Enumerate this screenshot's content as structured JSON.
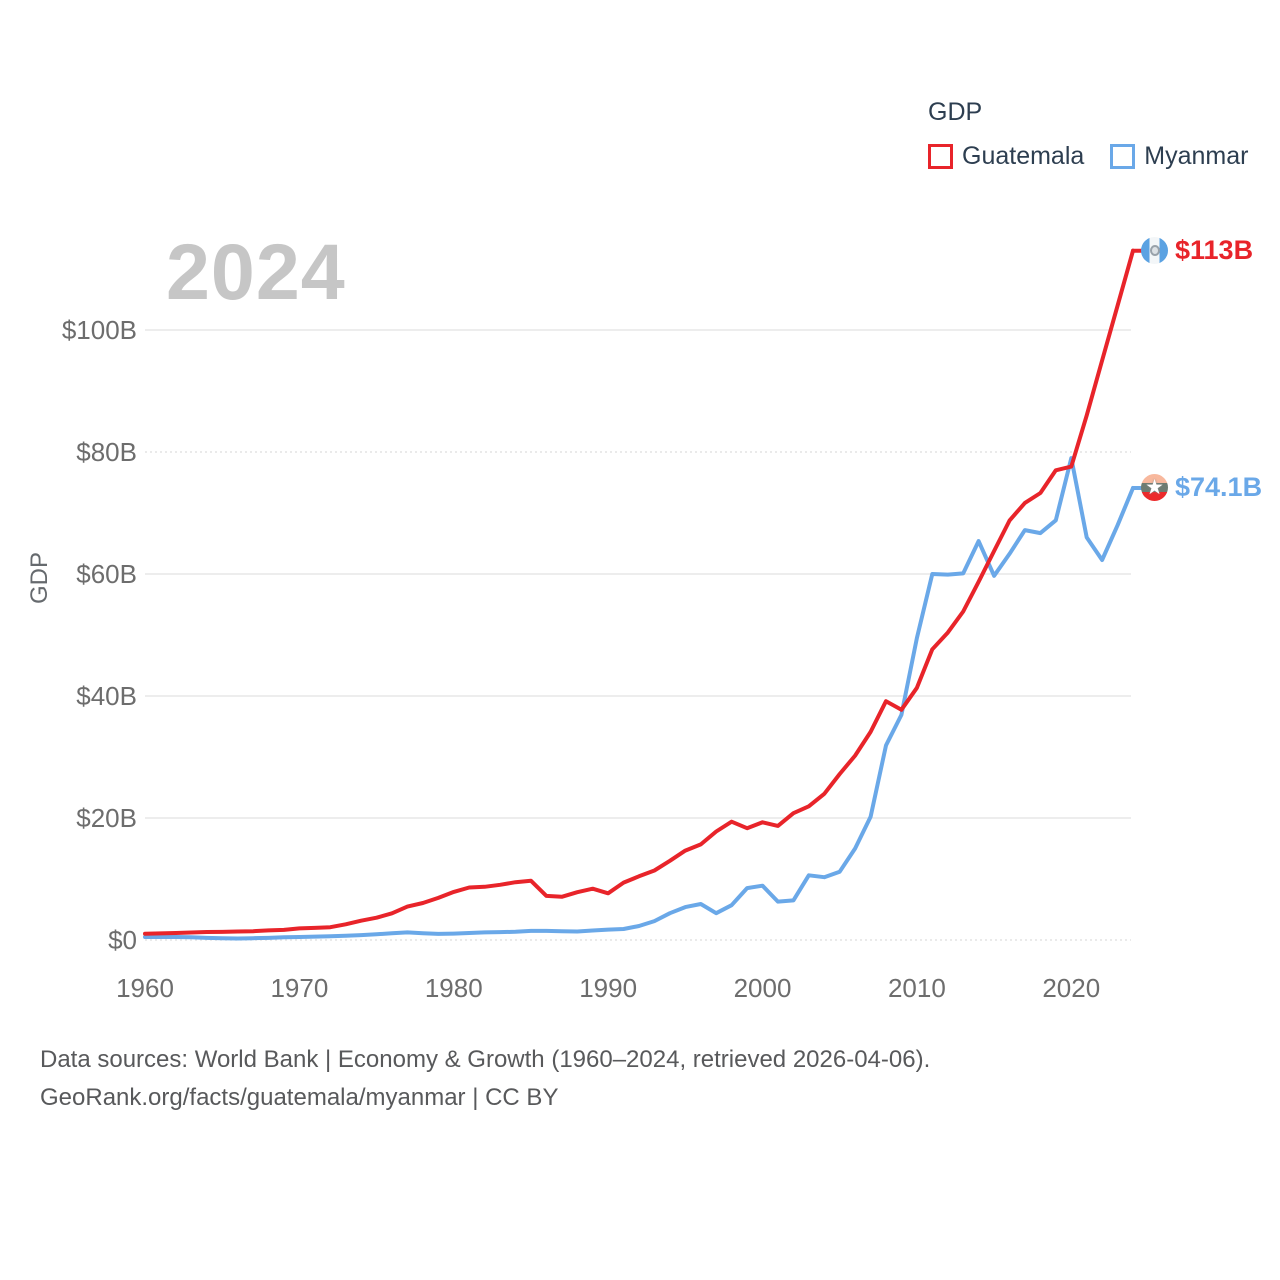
{
  "legend": {
    "title": "GDP",
    "items": [
      {
        "label": "Guatemala",
        "color": "#e8242a"
      },
      {
        "label": "Myanmar",
        "color": "#6aa8e8"
      }
    ]
  },
  "watermark": "2024",
  "axes": {
    "y_title": "GDP",
    "x_min": 1960,
    "x_max": 2024,
    "x_ticks": [
      1960,
      1970,
      1980,
      1990,
      2000,
      2010,
      2020
    ],
    "y_ticks": [
      {
        "label": "$0",
        "value": 0,
        "dashed": true
      },
      {
        "label": "$20B",
        "value": 20,
        "dashed": false
      },
      {
        "label": "$40B",
        "value": 40,
        "dashed": false
      },
      {
        "label": "$60B",
        "value": 60,
        "dashed": false
      },
      {
        "label": "$80B",
        "value": 80,
        "dashed": true
      },
      {
        "label": "$100B",
        "value": 100,
        "dashed": false
      }
    ]
  },
  "chart_data": {
    "type": "line",
    "title": "GDP",
    "ylabel": "GDP",
    "xlim": [
      1960,
      2024
    ],
    "ylim": [
      0,
      116
    ],
    "grid": true,
    "legend_position": "top-right",
    "x": [
      1960,
      1961,
      1962,
      1963,
      1964,
      1965,
      1966,
      1967,
      1968,
      1969,
      1970,
      1971,
      1972,
      1973,
      1974,
      1975,
      1976,
      1977,
      1978,
      1979,
      1980,
      1981,
      1982,
      1983,
      1984,
      1985,
      1986,
      1987,
      1988,
      1989,
      1990,
      1991,
      1992,
      1993,
      1994,
      1995,
      1996,
      1997,
      1998,
      1999,
      2000,
      2001,
      2002,
      2003,
      2004,
      2005,
      2006,
      2007,
      2008,
      2009,
      2010,
      2011,
      2012,
      2013,
      2014,
      2015,
      2016,
      2017,
      2018,
      2019,
      2020,
      2021,
      2022,
      2023,
      2024
    ],
    "series": [
      {
        "name": "Guatemala",
        "color": "#e8242a",
        "end_label": "$113B",
        "flag": "guatemala",
        "values": [
          1.04,
          1.09,
          1.15,
          1.23,
          1.31,
          1.33,
          1.39,
          1.45,
          1.58,
          1.66,
          1.9,
          1.98,
          2.1,
          2.57,
          3.16,
          3.65,
          4.37,
          5.48,
          6.07,
          6.9,
          7.88,
          8.61,
          8.72,
          9.05,
          9.47,
          9.72,
          7.23,
          7.08,
          7.84,
          8.41,
          7.65,
          9.41,
          10.44,
          11.4,
          12.98,
          14.66,
          15.67,
          17.79,
          19.4,
          18.32,
          19.29,
          18.7,
          20.78,
          21.92,
          23.97,
          27.21,
          30.23,
          34.11,
          39.14,
          37.73,
          41.34,
          47.65,
          50.39,
          53.85,
          58.72,
          63.77,
          68.76,
          71.65,
          73.28,
          77.0,
          77.6,
          86.0,
          95.0,
          104.0,
          113.0
        ]
      },
      {
        "name": "Myanmar",
        "color": "#6aa8e8",
        "end_label": "$74.1B",
        "flag": "myanmar",
        "values": [
          0.5,
          0.5,
          0.5,
          0.45,
          0.35,
          0.3,
          0.25,
          0.3,
          0.35,
          0.45,
          0.5,
          0.55,
          0.6,
          0.7,
          0.8,
          0.95,
          1.1,
          1.25,
          1.1,
          1.0,
          1.05,
          1.15,
          1.25,
          1.3,
          1.35,
          1.5,
          1.5,
          1.45,
          1.4,
          1.55,
          1.7,
          1.8,
          2.3,
          3.1,
          4.4,
          5.4,
          5.9,
          4.4,
          5.7,
          8.5,
          8.9,
          6.3,
          6.5,
          10.6,
          10.3,
          11.2,
          15.0,
          20.2,
          31.9,
          36.9,
          49.5,
          60.0,
          59.9,
          60.1,
          65.4,
          59.7,
          63.3,
          67.2,
          66.7,
          68.8,
          79.0,
          66.0,
          62.3,
          68.0,
          74.1
        ]
      }
    ]
  },
  "footer": {
    "line1": "Data sources: World Bank | Economy & Growth (1960–2024, retrieved 2026-04-06).",
    "line2": "GeoRank.org/facts/guatemala/myanmar | CC BY"
  }
}
